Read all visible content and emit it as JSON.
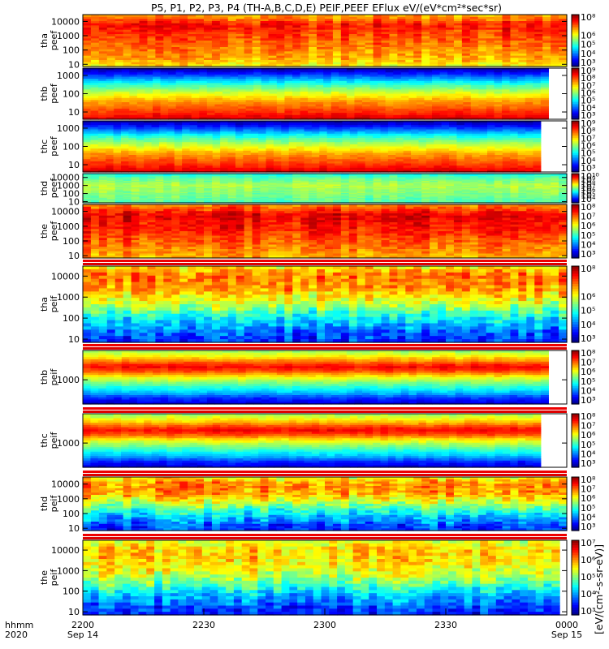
{
  "title": "P5, P1, P2, P3, P4 (TH-A,B,C,D,E) PEIF,PEEF EFlux eV/(eV*cm²*sec*sr)",
  "xaxis": {
    "left_labels": [
      "hhmm",
      "2020"
    ],
    "ticks": [
      {
        "top": "2200",
        "bottom": "Sep 14",
        "frac": 0.0
      },
      {
        "top": "2230",
        "bottom": "",
        "frac": 0.25
      },
      {
        "top": "2300",
        "bottom": "",
        "frac": 0.5
      },
      {
        "top": "2330",
        "bottom": "",
        "frac": 0.75
      },
      {
        "top": "0000",
        "bottom": "Sep 15",
        "frac": 1.0
      }
    ]
  },
  "colorbar_unit": "[eV/(cm²-s-sr-eV)]",
  "chart_data": {
    "type": "heatmap",
    "x_range": [
      "2020-09-14 22:00",
      "2020-09-15 00:00"
    ],
    "panels": [
      {
        "id": "tha-peef",
        "lines": [
          "tha",
          "peef"
        ],
        "yticks": [
          "10000",
          "1000",
          "100",
          "10"
        ],
        "yvals": [
          10000,
          1000,
          100,
          10
        ],
        "ylim": [
          7,
          30000
        ],
        "log": true,
        "cb_ticks": [
          "10⁸",
          "10⁶",
          "10⁵",
          "10⁴",
          "10³"
        ],
        "cb_vals": [
          100000000,
          1000000,
          100000,
          10000,
          1000
        ],
        "profile": [
          [
            0,
            0.62
          ],
          [
            0.15,
            0.7
          ],
          [
            0.55,
            0.8
          ],
          [
            0.8,
            0.86
          ],
          [
            1,
            0.7
          ]
        ],
        "noise": 0.1,
        "gap": false,
        "end_frac": 1.0
      },
      {
        "id": "thb-peef",
        "lines": [
          "thb",
          "peef"
        ],
        "yticks": [
          "1000",
          "100",
          "10"
        ],
        "yvals": [
          1000,
          100,
          10
        ],
        "ylim": [
          4,
          2500
        ],
        "log": true,
        "cb_ticks": [
          "10⁹",
          "10⁸",
          "10⁷",
          "10⁶",
          "10⁵",
          "10⁴",
          "10³"
        ],
        "cb_vals": [
          1000000000,
          100000000,
          10000000,
          1000000,
          100000,
          10000,
          1000
        ],
        "profile": [
          [
            0,
            0.92
          ],
          [
            0.12,
            0.84
          ],
          [
            0.35,
            0.72
          ],
          [
            0.55,
            0.55
          ],
          [
            0.7,
            0.4
          ],
          [
            0.85,
            0.2
          ],
          [
            0.95,
            0.08
          ],
          [
            1,
            0.02
          ]
        ],
        "noise": 0.05,
        "gap": false,
        "end_frac": 0.962
      },
      {
        "id": "thc-peef",
        "lines": [
          "thc",
          "peef"
        ],
        "yticks": [
          "1000",
          "100",
          "10"
        ],
        "yvals": [
          1000,
          100,
          10
        ],
        "ylim": [
          4,
          2500
        ],
        "log": true,
        "cb_ticks": [
          "10⁹",
          "10⁸",
          "10⁷",
          "10⁶",
          "10⁵",
          "10⁴",
          "10³"
        ],
        "cb_vals": [
          1000000000,
          100000000,
          10000000,
          1000000,
          100000,
          10000,
          1000
        ],
        "profile": [
          [
            0,
            0.92
          ],
          [
            0.12,
            0.84
          ],
          [
            0.35,
            0.72
          ],
          [
            0.55,
            0.55
          ],
          [
            0.7,
            0.4
          ],
          [
            0.85,
            0.2
          ],
          [
            0.95,
            0.08
          ],
          [
            1,
            0.02
          ]
        ],
        "noise": 0.05,
        "gap": false,
        "end_frac": 0.946
      },
      {
        "id": "thd-peef",
        "lines": [
          "thd",
          "peef"
        ],
        "yticks": [
          "10000",
          "1000",
          "100",
          "10"
        ],
        "yvals": [
          10000,
          1000,
          100,
          10
        ],
        "ylim": [
          7,
          30000
        ],
        "log": true,
        "cb_ticks": [
          "10¹⁰",
          "10⁹",
          "10⁸",
          "10⁷",
          "10⁶",
          "10⁵",
          "10⁴"
        ],
        "cb_vals": [
          10000000000,
          1000000000,
          100000000,
          10000000,
          1000000,
          100000,
          10000
        ],
        "profile": [
          [
            0,
            0.45
          ],
          [
            0.3,
            0.5
          ],
          [
            0.6,
            0.55
          ],
          [
            0.85,
            0.46
          ],
          [
            1,
            0.38
          ]
        ],
        "noise": 0.06,
        "gap": false,
        "end_frac": 1.0
      },
      {
        "id": "the-peef",
        "lines": [
          "the",
          "peef"
        ],
        "yticks": [
          "10000",
          "1000",
          "100",
          "10"
        ],
        "yvals": [
          10000,
          1000,
          100,
          10
        ],
        "ylim": [
          7,
          30000
        ],
        "log": true,
        "cb_ticks": [
          "10⁸",
          "10⁷",
          "10⁶",
          "10⁵",
          "10⁴",
          "10³"
        ],
        "cb_vals": [
          100000000,
          10000000,
          1000000,
          100000,
          10000,
          1000
        ],
        "profile": [
          [
            0,
            0.7
          ],
          [
            0.2,
            0.76
          ],
          [
            0.55,
            0.86
          ],
          [
            0.8,
            0.9
          ],
          [
            1,
            0.74
          ]
        ],
        "noise": 0.1,
        "gap": false,
        "end_frac": 1.0
      },
      {
        "id": "tha-peif",
        "lines": [
          "tha",
          "peif"
        ],
        "yticks": [
          "10000",
          "1000",
          "100",
          "10"
        ],
        "yvals": [
          10000,
          1000,
          100,
          10
        ],
        "ylim": [
          7,
          30000
        ],
        "log": true,
        "cb_ticks": [
          "10⁸",
          "10⁶",
          "10⁵",
          "10⁴",
          "10³"
        ],
        "cb_vals": [
          100000000,
          1000000,
          100000,
          10000,
          1000
        ],
        "profile": [
          [
            0,
            0.15
          ],
          [
            0.1,
            0.2
          ],
          [
            0.3,
            0.35
          ],
          [
            0.5,
            0.55
          ],
          [
            0.7,
            0.72
          ],
          [
            0.88,
            0.76
          ],
          [
            1,
            0.62
          ]
        ],
        "noise": 0.14,
        "gap": true,
        "end_frac": 1.0
      },
      {
        "id": "thb-peif",
        "lines": [
          "thb",
          "peif"
        ],
        "yticks": [
          "1000"
        ],
        "yvals": [
          1000
        ],
        "ylim": [
          60,
          30000
        ],
        "log": true,
        "cb_ticks": [
          "10⁸",
          "10⁷",
          "10⁶",
          "10⁵",
          "10⁴",
          "10³"
        ],
        "cb_vals": [
          100000000,
          10000000,
          1000000,
          100000,
          10000,
          1000
        ],
        "profile": [
          [
            0,
            0.08
          ],
          [
            0.1,
            0.16
          ],
          [
            0.2,
            0.3
          ],
          [
            0.35,
            0.45
          ],
          [
            0.5,
            0.62
          ],
          [
            0.62,
            0.82
          ],
          [
            0.7,
            0.88
          ],
          [
            0.8,
            0.75
          ],
          [
            0.9,
            0.62
          ],
          [
            1,
            0.52
          ]
        ],
        "noise": 0.05,
        "gap": true,
        "end_frac": 0.962
      },
      {
        "id": "thc-peif",
        "lines": [
          "thc",
          "peif"
        ],
        "yticks": [
          "1000"
        ],
        "yvals": [
          1000
        ],
        "ylim": [
          60,
          30000
        ],
        "log": true,
        "cb_ticks": [
          "10⁸",
          "10⁷",
          "10⁶",
          "10⁵",
          "10⁴",
          "10³"
        ],
        "cb_vals": [
          100000000,
          10000000,
          1000000,
          100000,
          10000,
          1000
        ],
        "profile": [
          [
            0,
            0.08
          ],
          [
            0.1,
            0.16
          ],
          [
            0.2,
            0.3
          ],
          [
            0.35,
            0.45
          ],
          [
            0.5,
            0.62
          ],
          [
            0.62,
            0.82
          ],
          [
            0.7,
            0.88
          ],
          [
            0.8,
            0.75
          ],
          [
            0.9,
            0.62
          ],
          [
            1,
            0.52
          ]
        ],
        "noise": 0.05,
        "gap": true,
        "end_frac": 0.946
      },
      {
        "id": "thd-peif",
        "lines": [
          "thd",
          "peif"
        ],
        "yticks": [
          "10000",
          "1000",
          "100",
          "10"
        ],
        "yvals": [
          10000,
          1000,
          100,
          10
        ],
        "ylim": [
          7,
          30000
        ],
        "log": true,
        "cb_ticks": [
          "10⁸",
          "10⁷",
          "10⁶",
          "10⁵",
          "10⁴",
          "10³"
        ],
        "cb_vals": [
          100000000,
          10000000,
          1000000,
          100000,
          10000,
          1000
        ],
        "profile": [
          [
            0,
            0.15
          ],
          [
            0.1,
            0.2
          ],
          [
            0.3,
            0.35
          ],
          [
            0.5,
            0.55
          ],
          [
            0.7,
            0.72
          ],
          [
            0.88,
            0.74
          ],
          [
            1,
            0.6
          ]
        ],
        "noise": 0.14,
        "gap": true,
        "end_frac": 1.0
      },
      {
        "id": "the-peif",
        "lines": [
          "the",
          "peif"
        ],
        "yticks": [
          "10000",
          "1000",
          "100",
          "10"
        ],
        "yvals": [
          10000,
          1000,
          100,
          10
        ],
        "ylim": [
          7,
          30000
        ],
        "log": true,
        "cb_ticks": [
          "10⁷",
          "10⁶",
          "10⁵",
          "10⁴",
          "10³"
        ],
        "cb_vals": [
          10000000,
          1000000,
          100000,
          10000,
          1000
        ],
        "profile": [
          [
            0,
            0.15
          ],
          [
            0.1,
            0.2
          ],
          [
            0.3,
            0.35
          ],
          [
            0.5,
            0.55
          ],
          [
            0.7,
            0.66
          ],
          [
            0.88,
            0.68
          ],
          [
            1,
            0.58
          ]
        ],
        "noise": 0.14,
        "gap": true,
        "end_frac": 0.985
      }
    ]
  }
}
